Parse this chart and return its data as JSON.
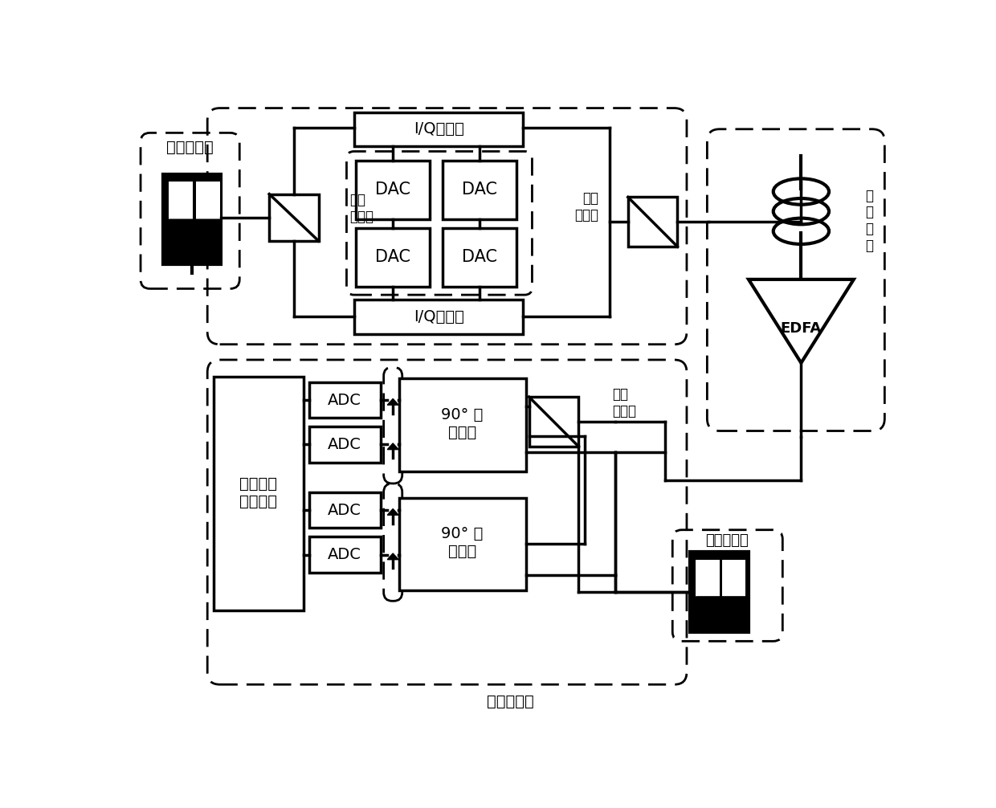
{
  "bg": "#ffffff",
  "lc": "#000000",
  "labels": {
    "tx_laser": "发射激光器",
    "pbs_tx": "偏振\n分束器",
    "pbc": "偏振\n合束器",
    "iq_top": "I/Q调制器",
    "iq_bot": "I/Q调制器",
    "dac": "DAC",
    "fiber": "传\n输\n光\n纤",
    "edfa": "EDFA",
    "pbs_rx": "偏振\n分束器",
    "mixer_top": "90° 光\n混频器",
    "mixer_bot": "90° 光\n混频器",
    "adc": "ADC",
    "dsp": "数字信号\n处理芯片",
    "rx_laser": "接收激光器",
    "bottom": "平衡探测器"
  }
}
